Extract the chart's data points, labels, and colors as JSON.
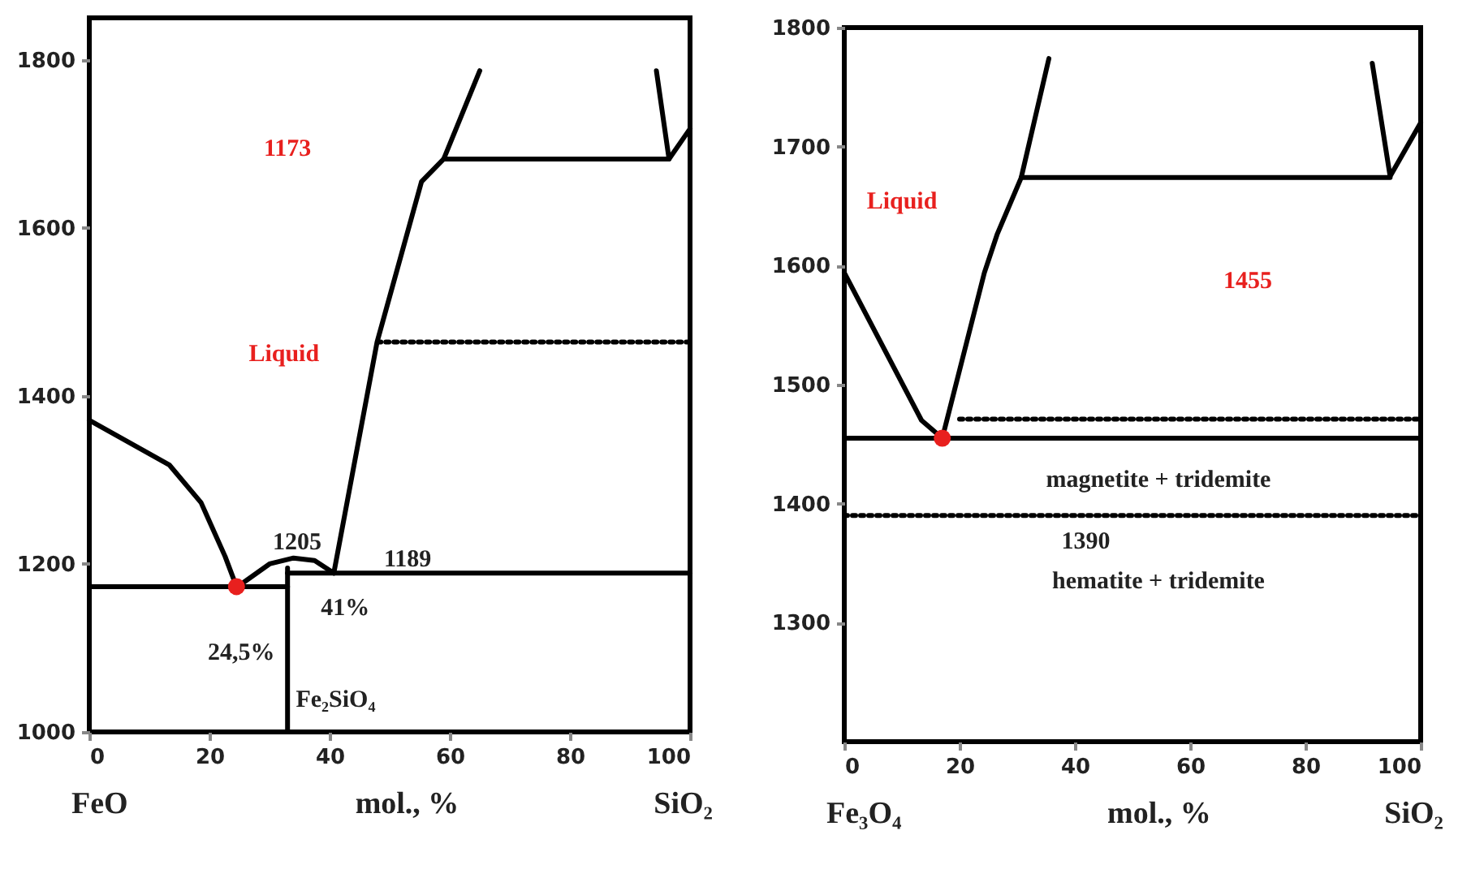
{
  "chart_data": [
    {
      "type": "line",
      "xlabel": "mol., %",
      "xlim": [
        0,
        100
      ],
      "xticks": [
        0,
        20,
        40,
        60,
        80,
        100
      ],
      "ylim": [
        1000,
        1850
      ],
      "yticks": [
        1000,
        1200,
        1400,
        1600,
        1800
      ],
      "grid": false,
      "line_style": "solid",
      "annotations": [
        "FeO",
        "SiO₂",
        "1173",
        "Liquid",
        "1205",
        "1189",
        "41%",
        "24,5%",
        "Fe₂SiO₄"
      ],
      "series": [
        {
          "color": "#000000",
          "x": [
            0,
            13.3,
            18.6,
            22.6,
            24.5
          ],
          "values": [
            1371,
            1318,
            1273,
            1209,
            1173
          ]
        },
        {
          "color": "#000000",
          "x": [
            25.3,
            30,
            34,
            37.5,
            40.7
          ],
          "values": [
            1176,
            1200,
            1207,
            1204,
            1189
          ]
        },
        {
          "color": "#000000",
          "x": [
            40.7,
            47.9,
            55.3,
            59,
            65
          ],
          "values": [
            1189,
            1464,
            1655,
            1682,
            1787
          ]
        },
        {
          "color": "#000000",
          "x": [
            59,
            96.5
          ],
          "values": [
            1682,
            1682
          ]
        },
        {
          "color": "#000000",
          "x": [
            94.4,
            96.5,
            100
          ],
          "values": [
            1787,
            1682,
            1718
          ]
        },
        {
          "color": "#000000",
          "x": [
            0,
            33
          ],
          "values": [
            1173,
            1173
          ]
        },
        {
          "color": "#000000",
          "x": [
            33,
            33
          ],
          "values": [
            1000,
            1195
          ]
        },
        {
          "color": "#000000",
          "x": [
            33,
            100
          ],
          "values": [
            1189,
            1189
          ]
        },
        {
          "color": "#000000",
          "line_style": "dotted",
          "x": [
            48,
            100
          ],
          "values": [
            1464,
            1464
          ]
        },
        {
          "type": "scatter",
          "color": "#e8201e",
          "marker": "circle",
          "x": [
            24.5
          ],
          "values": [
            1173
          ]
        }
      ]
    },
    {
      "type": "line",
      "xlabel": "mol., %",
      "xlim": [
        0,
        100
      ],
      "xticks": [
        0,
        20,
        40,
        60,
        80,
        100
      ],
      "ylim": [
        1200,
        1800
      ],
      "yticks": [
        1300,
        1400,
        1500,
        1600,
        1700,
        1800
      ],
      "grid": false,
      "line_style": "solid",
      "annotations": [
        "Fe₃O₄",
        "SiO₂",
        "Liquid",
        "1455",
        "magnetite + tridemite",
        "1390",
        "hematite + tridemite"
      ],
      "series": [
        {
          "color": "#000000",
          "x": [
            0,
            13.4,
            17
          ],
          "values": [
            1594,
            1470,
            1455
          ]
        },
        {
          "color": "#000000",
          "x": [
            17,
            24.3,
            26.5,
            30.7,
            35.5
          ],
          "values": [
            1455,
            1594,
            1626,
            1674,
            1774
          ]
        },
        {
          "color": "#000000",
          "x": [
            30.7,
            94.7
          ],
          "values": [
            1674,
            1674
          ]
        },
        {
          "color": "#000000",
          "x": [
            91.6,
            94.7,
            100
          ],
          "values": [
            1770,
            1675,
            1720
          ]
        },
        {
          "color": "#000000",
          "x": [
            0,
            100
          ],
          "values": [
            1455,
            1455
          ]
        },
        {
          "color": "#000000",
          "line_style": "dotted",
          "x": [
            20,
            100
          ],
          "values": [
            1471,
            1471
          ]
        },
        {
          "color": "#000000",
          "line_style": "dotted",
          "x": [
            0,
            100
          ],
          "values": [
            1390,
            1390
          ]
        },
        {
          "type": "scatter",
          "color": "#e8201e",
          "marker": "circle",
          "x": [
            17
          ],
          "values": [
            1455
          ]
        }
      ]
    }
  ]
}
